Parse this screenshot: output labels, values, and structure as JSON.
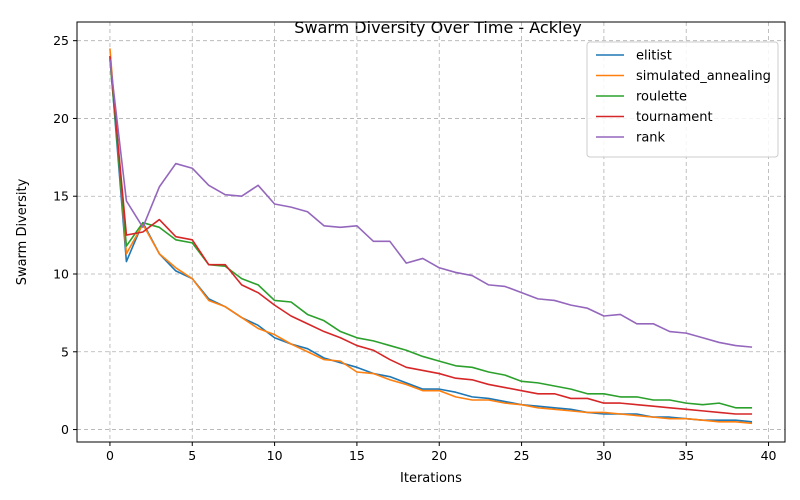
{
  "chart_data": {
    "type": "line",
    "title": "Swarm Diversity Over Time - Ackley",
    "xlabel": "Iterations",
    "ylabel": "Swarm Diversity",
    "xlim": [
      -2,
      41
    ],
    "ylim": [
      -0.8,
      26.2
    ],
    "xticks": [
      0,
      5,
      10,
      15,
      20,
      25,
      30,
      35,
      40
    ],
    "yticks": [
      0,
      5,
      10,
      15,
      20,
      25
    ],
    "grid": true,
    "legend_position": "top-right",
    "x": [
      0,
      1,
      2,
      3,
      4,
      5,
      6,
      7,
      8,
      9,
      10,
      11,
      12,
      13,
      14,
      15,
      16,
      17,
      18,
      19,
      20,
      21,
      22,
      23,
      24,
      25,
      26,
      27,
      28,
      29,
      30,
      31,
      32,
      33,
      34,
      35,
      36,
      37,
      38,
      39
    ],
    "series": [
      {
        "name": "elitist",
        "color": "#1f77b4",
        "values": [
          24.0,
          10.8,
          13.3,
          11.3,
          10.2,
          9.7,
          8.4,
          7.9,
          7.2,
          6.7,
          5.9,
          5.5,
          5.2,
          4.6,
          4.3,
          4.0,
          3.6,
          3.4,
          3.0,
          2.6,
          2.6,
          2.4,
          2.1,
          2.0,
          1.8,
          1.6,
          1.5,
          1.4,
          1.3,
          1.1,
          1.0,
          1.0,
          1.0,
          0.8,
          0.8,
          0.7,
          0.6,
          0.6,
          0.6,
          0.5
        ]
      },
      {
        "name": "simulated_annealing",
        "color": "#ff7f0e",
        "values": [
          24.5,
          11.3,
          13.2,
          11.3,
          10.4,
          9.7,
          8.3,
          7.9,
          7.2,
          6.5,
          6.1,
          5.5,
          5.0,
          4.5,
          4.4,
          3.7,
          3.6,
          3.2,
          2.9,
          2.5,
          2.5,
          2.1,
          1.9,
          1.9,
          1.7,
          1.6,
          1.4,
          1.3,
          1.2,
          1.1,
          1.1,
          1.0,
          0.9,
          0.8,
          0.7,
          0.7,
          0.6,
          0.5,
          0.5,
          0.4
        ]
      },
      {
        "name": "roulette",
        "color": "#2ca02c",
        "values": [
          23.8,
          11.8,
          13.3,
          13.0,
          12.2,
          12.0,
          10.6,
          10.5,
          9.7,
          9.3,
          8.3,
          8.2,
          7.4,
          7.0,
          6.3,
          5.9,
          5.7,
          5.4,
          5.1,
          4.7,
          4.4,
          4.1,
          4.0,
          3.7,
          3.5,
          3.1,
          3.0,
          2.8,
          2.6,
          2.3,
          2.3,
          2.1,
          2.1,
          1.9,
          1.9,
          1.7,
          1.6,
          1.7,
          1.4,
          1.4
        ]
      },
      {
        "name": "tournament",
        "color": "#d62728",
        "values": [
          24.0,
          12.5,
          12.7,
          13.5,
          12.4,
          12.2,
          10.6,
          10.6,
          9.3,
          8.8,
          8.0,
          7.3,
          6.8,
          6.3,
          5.9,
          5.4,
          5.1,
          4.5,
          4.0,
          3.8,
          3.6,
          3.3,
          3.2,
          2.9,
          2.7,
          2.5,
          2.3,
          2.3,
          2.0,
          2.0,
          1.7,
          1.7,
          1.6,
          1.5,
          1.4,
          1.3,
          1.2,
          1.1,
          1.0,
          1.0
        ]
      },
      {
        "name": "rank",
        "color": "#9467bd",
        "values": [
          23.8,
          14.7,
          13.0,
          15.6,
          17.1,
          16.8,
          15.7,
          15.1,
          15.0,
          15.7,
          14.5,
          14.3,
          14.0,
          13.1,
          13.0,
          13.1,
          12.1,
          12.1,
          10.7,
          11.0,
          10.4,
          10.1,
          9.9,
          9.3,
          9.2,
          8.8,
          8.4,
          8.3,
          8.0,
          7.8,
          7.3,
          7.4,
          6.8,
          6.8,
          6.3,
          6.2,
          5.9,
          5.6,
          5.4,
          5.3
        ]
      }
    ]
  }
}
